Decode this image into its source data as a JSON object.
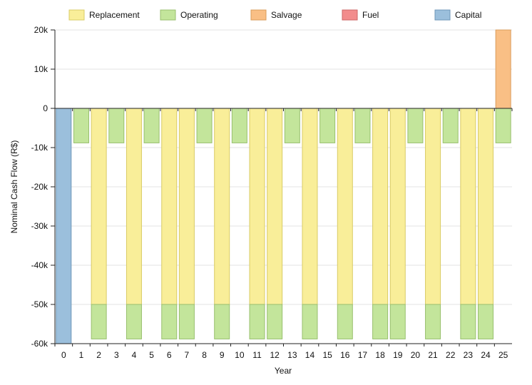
{
  "chart_data": {
    "type": "bar",
    "stacked": true,
    "xlabel": "Year",
    "ylabel": "Nominal Cash Flow (R$)",
    "ylim": [
      -60000,
      20000
    ],
    "yticks": [
      20000,
      10000,
      0,
      -10000,
      -20000,
      -30000,
      -40000,
      -50000,
      -60000
    ],
    "ytick_labels": [
      "20k",
      "10k",
      "0",
      "-10k",
      "-20k",
      "-30k",
      "-40k",
      "-50k",
      "-60k"
    ],
    "grid": true,
    "legend_position": "top",
    "categories": [
      "0",
      "1",
      "2",
      "3",
      "4",
      "5",
      "6",
      "7",
      "8",
      "9",
      "10",
      "11",
      "12",
      "13",
      "14",
      "15",
      "16",
      "17",
      "18",
      "19",
      "20",
      "21",
      "22",
      "23",
      "24",
      "25"
    ],
    "series": [
      {
        "name": "Replacement",
        "color": "#f9ee99",
        "stroke": "#d9cc66",
        "values": [
          0,
          0,
          -50000,
          0,
          -50000,
          0,
          -50000,
          -50000,
          0,
          -50000,
          0,
          -50000,
          -50000,
          0,
          -50000,
          0,
          -50000,
          0,
          -50000,
          -50000,
          0,
          -50000,
          0,
          -50000,
          -50000,
          0
        ]
      },
      {
        "name": "Operating",
        "color": "#c3e59b",
        "stroke": "#98bf6e",
        "values": [
          0,
          -8800,
          -8800,
          -8800,
          -8800,
          -8800,
          -8800,
          -8800,
          -8800,
          -8800,
          -8800,
          -8800,
          -8800,
          -8800,
          -8800,
          -8800,
          -8800,
          -8800,
          -8800,
          -8800,
          -8800,
          -8800,
          -8800,
          -8800,
          -8800,
          -8800
        ]
      },
      {
        "name": "Salvage",
        "color": "#f9bf85",
        "stroke": "#d99c5c",
        "values": [
          0,
          0,
          0,
          0,
          0,
          0,
          0,
          0,
          0,
          0,
          0,
          0,
          0,
          0,
          0,
          0,
          0,
          0,
          0,
          0,
          0,
          0,
          0,
          0,
          0,
          20000
        ]
      },
      {
        "name": "Fuel",
        "color": "#f28c8c",
        "stroke": "#cc6666",
        "values": [
          0,
          0,
          0,
          0,
          0,
          0,
          0,
          0,
          0,
          0,
          0,
          0,
          0,
          0,
          0,
          0,
          0,
          0,
          0,
          0,
          0,
          0,
          0,
          0,
          0,
          0
        ]
      },
      {
        "name": "Capital",
        "color": "#9bbfdc",
        "stroke": "#6f97b8",
        "values": [
          -60000,
          0,
          0,
          0,
          0,
          0,
          0,
          0,
          0,
          0,
          0,
          0,
          0,
          0,
          0,
          0,
          0,
          0,
          0,
          0,
          0,
          0,
          0,
          0,
          0,
          0
        ]
      }
    ]
  }
}
